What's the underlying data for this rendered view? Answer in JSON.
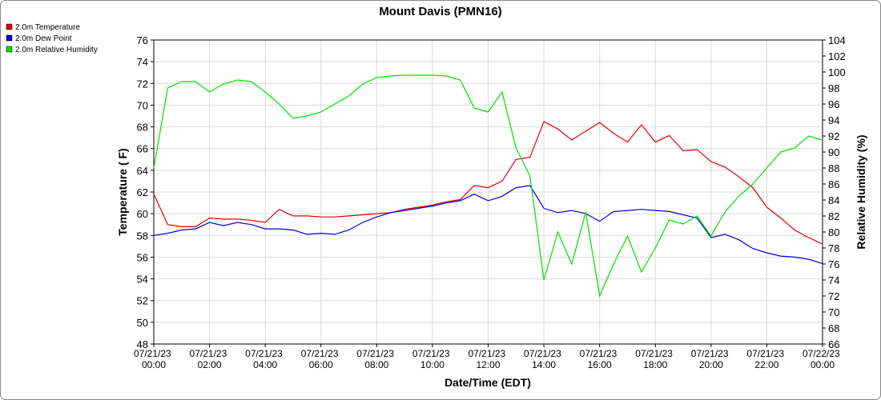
{
  "chart_data": {
    "type": "line",
    "title": "Mount Davis (PMN16)",
    "x_label": "Date/Time (EDT)",
    "y_label": "Temperature ( F)",
    "y2_label": "Relative Humidity (%)",
    "grid": true,
    "legend": "top-left",
    "x": [
      0,
      0.5,
      1,
      1.5,
      2,
      2.5,
      3,
      3.5,
      4,
      4.5,
      5,
      5.5,
      6,
      6.5,
      7,
      7.5,
      8,
      8.5,
      9,
      9.5,
      10,
      10.5,
      11,
      11.5,
      12,
      12.5,
      13,
      13.5,
      14,
      14.5,
      15,
      15.5,
      16,
      16.5,
      17,
      17.5,
      18,
      18.5,
      19,
      19.5,
      20,
      20.5,
      21,
      21.5,
      22,
      22.5,
      23,
      23.5,
      24
    ],
    "xlim": [
      0,
      24
    ],
    "xticks": [
      {
        "value": 0,
        "label": "07/21/23 00:00"
      },
      {
        "value": 2,
        "label": "07/21/23 02:00"
      },
      {
        "value": 4,
        "label": "07/21/23 04:00"
      },
      {
        "value": 6,
        "label": "07/21/23 06:00"
      },
      {
        "value": 8,
        "label": "07/21/23 08:00"
      },
      {
        "value": 10,
        "label": "07/21/23 10:00"
      },
      {
        "value": 12,
        "label": "07/21/23 12:00"
      },
      {
        "value": 14,
        "label": "07/21/23 14:00"
      },
      {
        "value": 16,
        "label": "07/21/23 16:00"
      },
      {
        "value": 18,
        "label": "07/21/23 18:00"
      },
      {
        "value": 20,
        "label": "07/21/23 20:00"
      },
      {
        "value": 22,
        "label": "07/21/23 22:00"
      },
      {
        "value": 24,
        "label": "07/22/23 00:00"
      }
    ],
    "ylim": [
      48,
      76
    ],
    "yticks": [
      48,
      50,
      52,
      54,
      56,
      58,
      60,
      62,
      64,
      66,
      68,
      70,
      72,
      74,
      76
    ],
    "y2lim": [
      66,
      104
    ],
    "y2ticks": [
      66,
      68,
      70,
      72,
      74,
      76,
      78,
      80,
      82,
      84,
      86,
      88,
      90,
      92,
      94,
      96,
      98,
      100,
      102,
      104
    ],
    "series": [
      {
        "name": "2.0m Temperature",
        "color": "#e00000",
        "values": [
          61.8,
          59,
          58.8,
          58.8,
          59.6,
          59.5,
          59.5,
          59.4,
          59.2,
          60.4,
          59.8,
          59.8,
          59.7,
          59.7,
          59.8,
          59.9,
          60.0,
          60.1,
          60.4,
          60.6,
          60.8,
          61.1,
          61.3,
          62.6,
          62.4,
          63.0,
          65.0,
          65.2,
          68.5,
          67.8,
          66.8,
          67.6,
          68.4,
          67.4,
          66.6,
          68.2,
          66.6,
          67.2,
          65.8,
          65.9,
          64.8,
          64.3,
          63.4,
          62.4,
          60.6,
          59.6,
          58.5,
          57.8,
          57.2
        ]
      },
      {
        "name": "2.0m Dew Point",
        "color": "#0000e0",
        "values": [
          58.0,
          58.2,
          58.5,
          58.6,
          59.2,
          58.9,
          59.2,
          59.0,
          58.6,
          58.6,
          58.5,
          58.1,
          58.2,
          58.1,
          58.5,
          59.2,
          59.7,
          60.1,
          60.3,
          60.5,
          60.7,
          61.0,
          61.2,
          61.8,
          61.2,
          61.6,
          62.4,
          62.6,
          60.5,
          60.1,
          60.3,
          60.0,
          59.3,
          60.2,
          60.3,
          60.4,
          60.3,
          60.2,
          59.9,
          59.6,
          57.8,
          58.1,
          57.6,
          56.8,
          56.4,
          56.1,
          56.0,
          55.8,
          55.4
        ]
      },
      {
        "name": "2.0m Relative Humidity",
        "color": "#00e000",
        "axis": "y2",
        "values": [
          88,
          98,
          98.8,
          98.8,
          97.5,
          98.5,
          99.0,
          98.8,
          97.5,
          96.0,
          94.2,
          94.5,
          95.0,
          96.0,
          97.0,
          98.5,
          99.3,
          99.5,
          99.6,
          99.6,
          99.6,
          99.5,
          99.0,
          95.5,
          95.0,
          97.5,
          90.5,
          87.0,
          74,
          80,
          76,
          82.5,
          72,
          76,
          79.5,
          75,
          78,
          81.5,
          81.0,
          82.0,
          79.5,
          82.5,
          84.5,
          86.0,
          88.0,
          90.0,
          90.5,
          92.0,
          91.5
        ]
      }
    ]
  }
}
